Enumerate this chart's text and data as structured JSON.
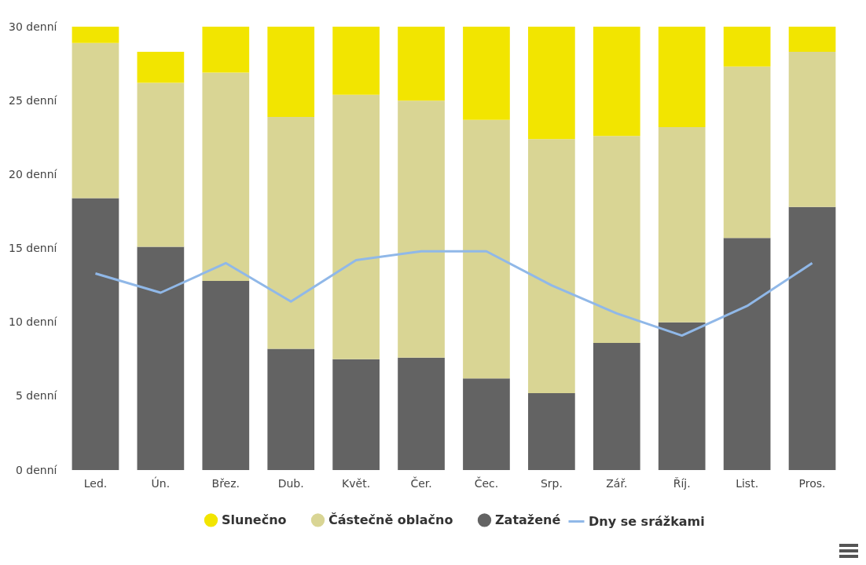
{
  "chart_data": {
    "type": "bar",
    "stacked": true,
    "categories": [
      "Led.",
      "Ún.",
      "Břez.",
      "Dub.",
      "Květ.",
      "Čer.",
      "Čec.",
      "Srp.",
      "Zář.",
      "Říj.",
      "List.",
      "Pros."
    ],
    "series": [
      {
        "name": "Zatažené",
        "color": "#636363",
        "values": [
          18.4,
          15.1,
          12.8,
          8.2,
          7.5,
          7.6,
          6.2,
          5.2,
          8.6,
          10.0,
          15.7,
          17.8
        ]
      },
      {
        "name": "Částečně oblačno",
        "color": "#d9d594",
        "values": [
          10.5,
          11.1,
          14.1,
          15.7,
          17.9,
          17.4,
          17.5,
          17.2,
          14.0,
          13.2,
          11.6,
          10.5
        ]
      },
      {
        "name": "Slunečno",
        "color": "#f2e500",
        "values": [
          1.1,
          2.1,
          3.1,
          6.1,
          4.6,
          5.0,
          6.3,
          7.6,
          7.4,
          6.8,
          2.7,
          1.7
        ]
      },
      {
        "name": "Dny se srážkami",
        "type": "line",
        "color": "#90b8e8",
        "values": [
          13.3,
          12.0,
          14.0,
          11.4,
          14.2,
          14.8,
          14.8,
          12.5,
          10.6,
          9.1,
          11.1,
          14.0
        ]
      }
    ],
    "ylim": [
      0,
      30
    ],
    "yticks": [
      {
        "value": 0,
        "label": "0 denní"
      },
      {
        "value": 5,
        "label": "5 denní"
      },
      {
        "value": 10,
        "label": "10 denní"
      },
      {
        "value": 15,
        "label": "15 denní"
      },
      {
        "value": 20,
        "label": "20 denní"
      },
      {
        "value": 25,
        "label": "25 denní"
      },
      {
        "value": 30,
        "label": "30 denní"
      }
    ],
    "legend": "bottom",
    "marker": "none"
  }
}
